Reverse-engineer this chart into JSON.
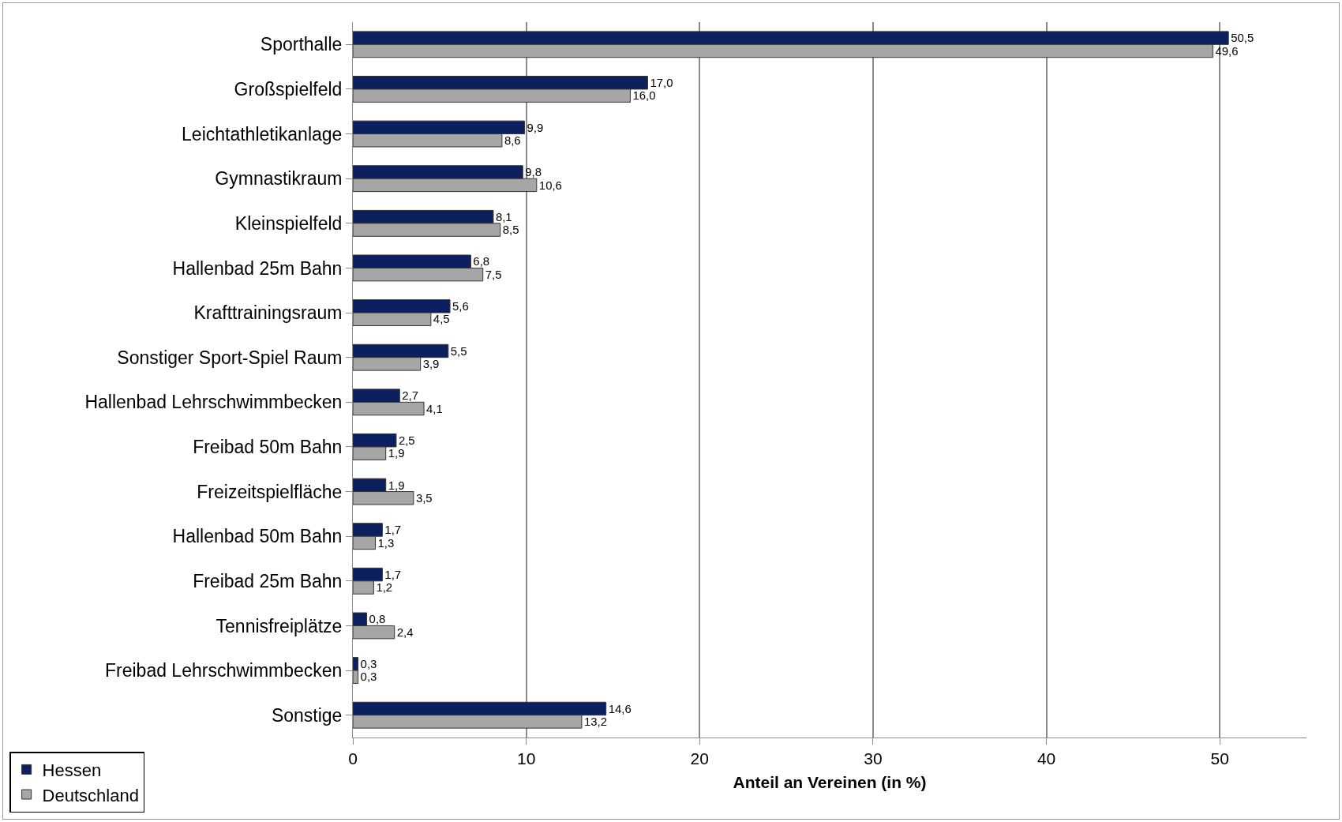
{
  "chart_data": {
    "type": "bar",
    "orientation": "horizontal",
    "xlabel": "Anteil an Vereinen (in %)",
    "categories": [
      "Sporthalle",
      "Großspielfeld",
      "Leichtathletikanlage",
      "Gymnastikraum",
      "Kleinspielfeld",
      "Hallenbad 25m Bahn",
      "Krafttrainingsraum",
      "Sonstiger Sport-Spiel Raum",
      "Hallenbad Lehrschwimmbecken",
      "Freibad 50m Bahn",
      "Freizeitspielfläche",
      "Hallenbad 50m Bahn",
      "Freibad 25m Bahn",
      "Tennisfreiplätze",
      "Freibad Lehrschwimmbecken",
      "Sonstige"
    ],
    "series": [
      {
        "name": "Hessen",
        "color": "#0c1f5e",
        "values": [
          50.5,
          17.0,
          9.9,
          9.8,
          8.1,
          6.8,
          5.6,
          5.5,
          2.7,
          2.5,
          1.9,
          1.7,
          1.7,
          0.8,
          0.3,
          14.6
        ],
        "value_labels": [
          "50,5",
          "17,0",
          "9,9",
          "9,8",
          "8,1",
          "6,8",
          "5,6",
          "5,5",
          "2,7",
          "2,5",
          "1,9",
          "1,7",
          "1,7",
          "0,8",
          "0,3",
          "14,6"
        ]
      },
      {
        "name": "Deutschland",
        "color": "#a6a6a6",
        "values": [
          49.6,
          16.0,
          8.6,
          10.6,
          8.5,
          7.5,
          4.5,
          3.9,
          4.1,
          1.9,
          3.5,
          1.3,
          1.2,
          2.4,
          0.3,
          13.2
        ],
        "value_labels": [
          "49,6",
          "16,0",
          "8,6",
          "10,6",
          "8,5",
          "7,5",
          "4,5",
          "3,9",
          "4,1",
          "1,9",
          "3,5",
          "1,3",
          "1,2",
          "2,4",
          "0,3",
          "13,2"
        ]
      }
    ],
    "xlim": [
      0,
      55
    ],
    "xticks": [
      0,
      10,
      20,
      30,
      40,
      50
    ],
    "grid": "x",
    "legend": "bottom left"
  }
}
